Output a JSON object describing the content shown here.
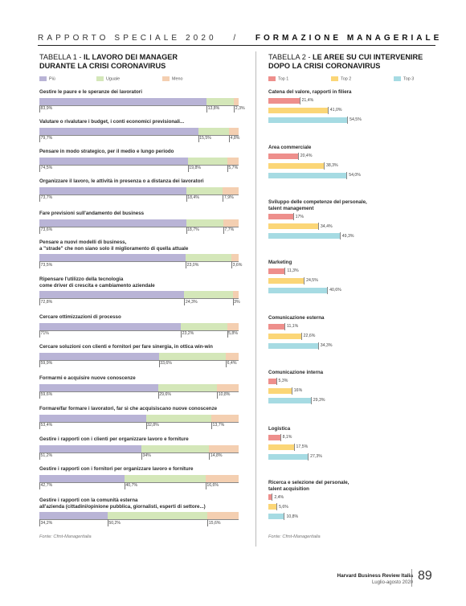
{
  "header": {
    "prefix": "RAPPORTO SPECIALE 2020",
    "section": "FORMAZIONE MANAGERIALE"
  },
  "colors": {
    "piu": "#b9b4d6",
    "uguale": "#d4e7b9",
    "meno": "#f4cfb1",
    "top1": "#ee8f8c",
    "top2": "#fbd677",
    "top3": "#a6dbe3"
  },
  "table1": {
    "title_prefix": "TABELLA 1 - ",
    "title_line1": "IL LAVORO DEI MANAGER",
    "title_line2": "DURANTE LA CRISI CORONAVIRUS",
    "legend": [
      "Più",
      "Uguale",
      "Meno"
    ],
    "source": "Fonte: Cfmt-Manageritalia"
  },
  "table2": {
    "title_prefix": "TABELLA 2 - ",
    "title_line1": "LE AREE SU CUI INTERVENIRE",
    "title_line2": "DOPO LA CRISI CORONAVIRUS",
    "legend": [
      "Top 1",
      "Top 2",
      "Top 3"
    ],
    "source": "Fonte: Cfmt-Manageritalia"
  },
  "chart_data": [
    {
      "type": "bar",
      "stacked": true,
      "orientation": "horizontal",
      "series_names": [
        "Più",
        "Uguale",
        "Meno"
      ],
      "categories": [
        [
          "Gestire le paure e le speranze dei lavoratori"
        ],
        [
          "Valutare o rivalutare i budget, i conti economici previsionali..."
        ],
        [
          "Pensare in modo strategico, per il medio e lungo periodo"
        ],
        [
          "Organizzare il lavoro, le attività in presenza o a distanza dei lavoratori"
        ],
        [
          "Fare previsioni sull'andamento del business"
        ],
        [
          "Pensare a nuovi modelli di business,",
          "a \"strade\" che non siano solo il miglioramento di quella attuale"
        ],
        [
          "Ripensare l'utilizzo della tecnologia",
          "come driver di crescita e cambiamento aziendale"
        ],
        [
          "Cercare ottimizzazioni di processo"
        ],
        [
          "Cercare soluzioni con clienti e fornitori per fare sinergia, in ottica win-win"
        ],
        [
          "Formarmi e acquisire nuove conoscenze"
        ],
        [
          "Formare/far formare i lavoratori, far sì che acquisiscano nuove conoscenze"
        ],
        [
          "Gestire i rapporti con i clienti per organizzare lavoro e forniture"
        ],
        [
          "Gestire i rapporti con i fornitori per organizzare lavoro e forniture"
        ],
        [
          "Gestire i rapporti con la comunità esterna",
          "all'azienda (cittadini/opinione pubblica, giornalisti, esperti di settore...)"
        ]
      ],
      "values": [
        [
          83.9,
          13.8,
          2.3
        ],
        [
          79.7,
          15.5,
          4.8
        ],
        [
          74.5,
          19.8,
          5.7
        ],
        [
          73.7,
          18.4,
          7.9
        ],
        [
          73.6,
          18.7,
          7.7
        ],
        [
          73.5,
          23.0,
          3.6
        ],
        [
          72.8,
          24.3,
          3.0
        ],
        [
          71.0,
          23.2,
          5.8
        ],
        [
          59.9,
          33.6,
          6.4
        ],
        [
          59.6,
          29.6,
          10.8
        ],
        [
          53.4,
          32.8,
          13.7
        ],
        [
          51.2,
          34.0,
          14.8
        ],
        [
          42.7,
          40.7,
          16.6
        ],
        [
          34.2,
          50.2,
          15.6
        ]
      ],
      "labels": [
        [
          "83,9%",
          "13,8%",
          "2,3%"
        ],
        [
          "79,7%",
          "15,5%",
          "4,8%"
        ],
        [
          "74,5%",
          "19,8%",
          "5,7%"
        ],
        [
          "73,7%",
          "18,4%",
          "7,9%"
        ],
        [
          "73,6%",
          "18,7%",
          "7,7%"
        ],
        [
          "73,5%",
          "23,0%",
          "3,6%"
        ],
        [
          "72,8%",
          "24,3%",
          "3%"
        ],
        [
          "71%",
          "23,2%",
          "5,8%"
        ],
        [
          "59,9%",
          "33,6%",
          "6,4%"
        ],
        [
          "59,6%",
          "29,6%",
          "10,8%"
        ],
        [
          "53,4%",
          "32,8%",
          "13,7%"
        ],
        [
          "51,2%",
          "34%",
          "14,8%"
        ],
        [
          "42,7%",
          "40,7%",
          "16,6%"
        ],
        [
          "34,2%",
          "50,2%",
          "15,6%"
        ]
      ],
      "xlim": [
        0,
        100
      ]
    },
    {
      "type": "bar",
      "orientation": "horizontal",
      "series_names": [
        "Top 1",
        "Top 2",
        "Top 3"
      ],
      "categories": [
        [
          "Catena del valore, rapporti in filiera"
        ],
        [
          "Area commerciale"
        ],
        [
          "Sviluppo delle competenze del personale,",
          "talent management"
        ],
        [
          "Marketing"
        ],
        [
          "Comunicazione esterna"
        ],
        [
          "Comunicazione interna"
        ],
        [
          "Logistica"
        ],
        [
          "Ricerca e selezione del personale,",
          "talent acquisition"
        ]
      ],
      "values": [
        [
          21.4,
          41.0,
          54.5
        ],
        [
          20.4,
          38.3,
          54.0
        ],
        [
          17.0,
          34.4,
          49.3
        ],
        [
          11.3,
          24.5,
          40.6
        ],
        [
          11.1,
          22.6,
          34.3
        ],
        [
          5.3,
          16.0,
          29.3
        ],
        [
          8.1,
          17.5,
          27.3
        ],
        [
          2.4,
          5.6,
          10.8
        ]
      ],
      "labels": [
        [
          "21,4%",
          "41,0%",
          "54,5%"
        ],
        [
          "20,4%",
          "38,3%",
          "54,0%"
        ],
        [
          "17%",
          "34,4%",
          "49,3%"
        ],
        [
          "11,3%",
          "24,5%",
          "40,6%"
        ],
        [
          "11,1%",
          "22,6%",
          "34,3%"
        ],
        [
          "5,3%",
          "16%",
          "29,3%"
        ],
        [
          "8,1%",
          "17,5%",
          "27,3%"
        ],
        [
          "2,4%",
          "5,6%",
          "10,8%"
        ]
      ],
      "xlim": [
        0,
        100
      ]
    }
  ],
  "footer": {
    "publication": "Harvard Business Review Italia",
    "date": "Luglio-agosto 2020",
    "page": "89"
  }
}
